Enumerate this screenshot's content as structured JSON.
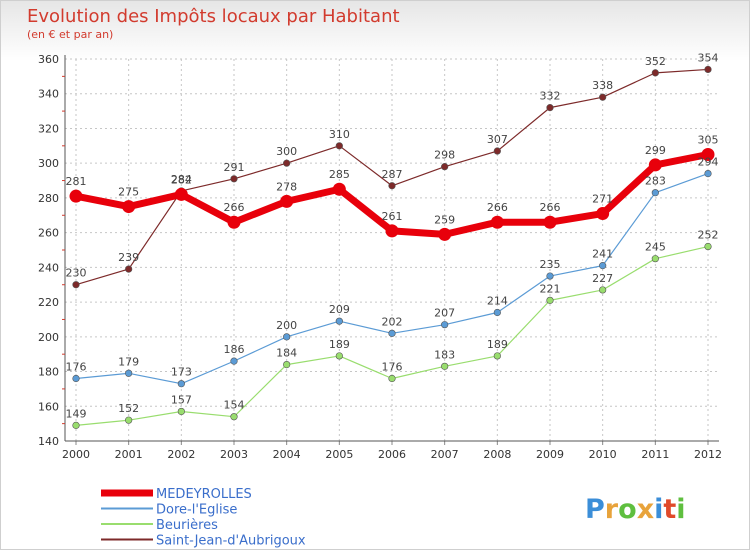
{
  "chart_data": {
    "type": "line",
    "title": "Evolution des Impôts locaux par Habitant",
    "subtitle": "(en € et par an)",
    "xlabel": "",
    "ylabel": "",
    "categories": [
      "2000",
      "2001",
      "2002",
      "2003",
      "2004",
      "2005",
      "2006",
      "2007",
      "2008",
      "2009",
      "2010",
      "2011",
      "2012"
    ],
    "ylim": [
      140,
      360
    ],
    "yticks": [
      140,
      160,
      180,
      200,
      220,
      240,
      260,
      280,
      300,
      320,
      340,
      360
    ],
    "grid": true,
    "legend_position": "bottom-left",
    "series": [
      {
        "name": "MEDEYROLLES",
        "color": "#e8000b",
        "values": [
          281,
          275,
          282,
          266,
          278,
          285,
          261,
          259,
          266,
          266,
          271,
          299,
          305
        ]
      },
      {
        "name": "Dore-l'Eglise",
        "color": "#5b9bd5",
        "values": [
          176,
          179,
          173,
          186,
          200,
          209,
          202,
          207,
          214,
          235,
          241,
          283,
          294
        ]
      },
      {
        "name": "Beurières",
        "color": "#99dd6e",
        "values": [
          149,
          152,
          157,
          154,
          184,
          189,
          176,
          183,
          189,
          221,
          227,
          245,
          252
        ]
      },
      {
        "name": "Saint-Jean-d'Aubrigoux",
        "color": "#7d2a2a",
        "values": [
          230,
          239,
          284,
          291,
          300,
          310,
          287,
          298,
          307,
          332,
          338,
          352,
          354
        ]
      }
    ]
  },
  "logo": {
    "letters": [
      "P",
      "r",
      "o",
      "x",
      "i",
      "t",
      "i"
    ],
    "colors": [
      "#3b8ed8",
      "#e8a33b",
      "#5fbf3f",
      "#e8a33b",
      "#3b8ed8",
      "#e04a2a",
      "#5fbf3f"
    ]
  }
}
